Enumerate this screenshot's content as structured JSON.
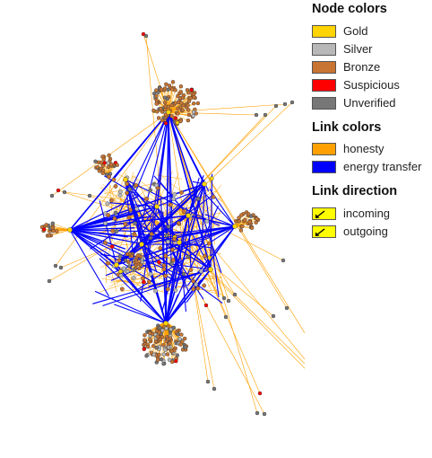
{
  "legend": {
    "node_colors": {
      "title": "Node colors",
      "items": [
        {
          "label": "Gold",
          "color": "#FFD400"
        },
        {
          "label": "Silver",
          "color": "#B8B8B8"
        },
        {
          "label": "Bronze",
          "color": "#C87533"
        },
        {
          "label": "Suspicious",
          "color": "#FF0000"
        },
        {
          "label": "Unverified",
          "color": "#777777"
        }
      ]
    },
    "link_colors": {
      "title": "Link colors",
      "items": [
        {
          "label": "honesty",
          "color": "#FFA000"
        },
        {
          "label": "energy transfer",
          "color": "#0000FF"
        }
      ]
    },
    "link_direction": {
      "title": "Link direction",
      "items": [
        {
          "label": "incoming",
          "color": "#FFFF00",
          "icon": "incoming-arrow-icon"
        },
        {
          "label": "outgoing",
          "color": "#FFFF00",
          "icon": "outgoing-arrow-icon"
        }
      ]
    }
  },
  "colors": {
    "honesty_link": "#FFA000",
    "energy_link": "#0000FF",
    "gold": "#FFD400",
    "silver": "#B8B8B8",
    "bronze": "#C87533",
    "suspicious": "#FF0000",
    "unverified": "#777777",
    "node_outline": "#333333"
  }
}
